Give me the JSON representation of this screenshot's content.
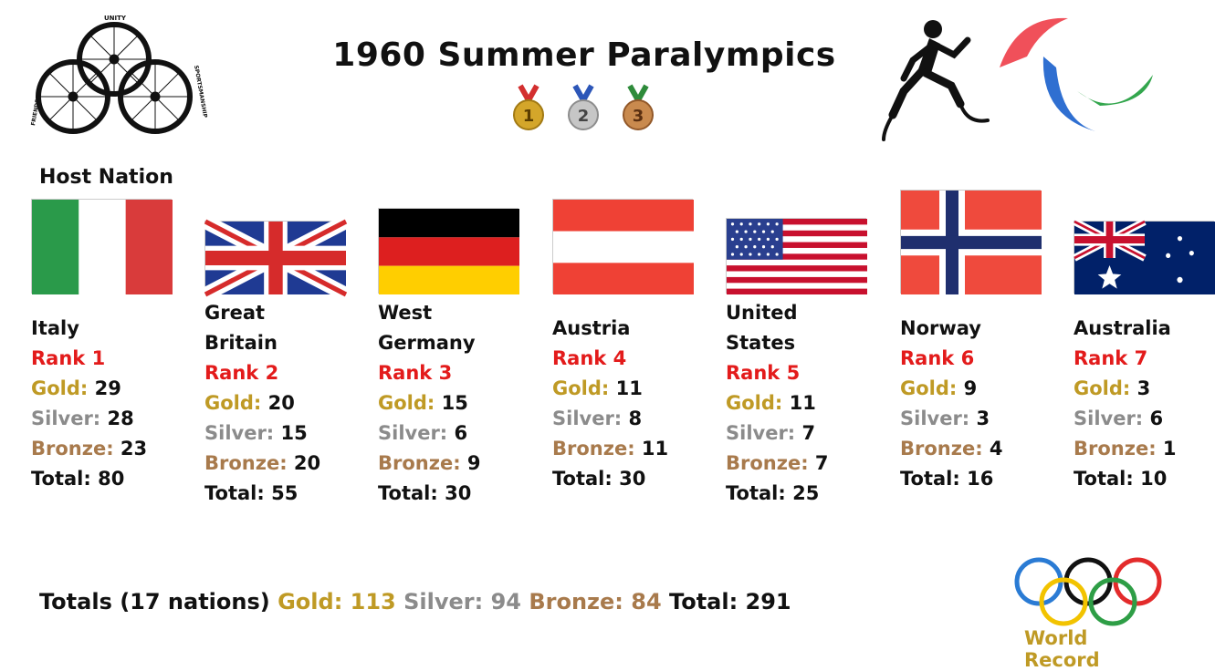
{
  "title": "1960 Summer Paralympics",
  "medals": [
    "1",
    "2",
    "3"
  ],
  "wheel_logo_words": [
    "UNITY",
    "FRIENDSHIP",
    "SPORTSMANSHIP"
  ],
  "host_label": "Host Nation",
  "labels": {
    "gold": "Gold:",
    "silver": "Silver:",
    "bronze": "Bronze:",
    "total": "Total:"
  },
  "nations": [
    {
      "name": "Italy",
      "rank": "Rank 1",
      "gold": "29",
      "silver": "28",
      "bronze": "23",
      "total": "80"
    },
    {
      "name": "Great Britain",
      "rank": "Rank 2",
      "gold": "20",
      "silver": "15",
      "bronze": "20",
      "total": "55"
    },
    {
      "name": "West Germany",
      "rank": "Rank 3",
      "gold": "15",
      "silver": "6",
      "bronze": "9",
      "total": "30"
    },
    {
      "name": "Austria",
      "rank": "Rank 4",
      "gold": "11",
      "silver": "8",
      "bronze": "11",
      "total": "30"
    },
    {
      "name": "United States",
      "rank": "Rank 5",
      "gold": "11",
      "silver": "7",
      "bronze": "7",
      "total": "25"
    },
    {
      "name": "Norway",
      "rank": "Rank 6",
      "gold": "9",
      "silver": "3",
      "bronze": "4",
      "total": "16"
    },
    {
      "name": "Australia",
      "rank": "Rank 7",
      "gold": "3",
      "silver": "6",
      "bronze": "1",
      "total": "10"
    }
  ],
  "totals": {
    "prefix": "Totals (17 nations)",
    "gold": "Gold: 113",
    "silver": "Silver: 94",
    "bronze": "Bronze: 84",
    "total": "Total: 291"
  },
  "footer_brand": "World Record",
  "colors": {
    "rank": "#e31b1b",
    "gold": "#bf9a25",
    "silver": "#8b8b8b",
    "bronze": "#a87a4c"
  }
}
